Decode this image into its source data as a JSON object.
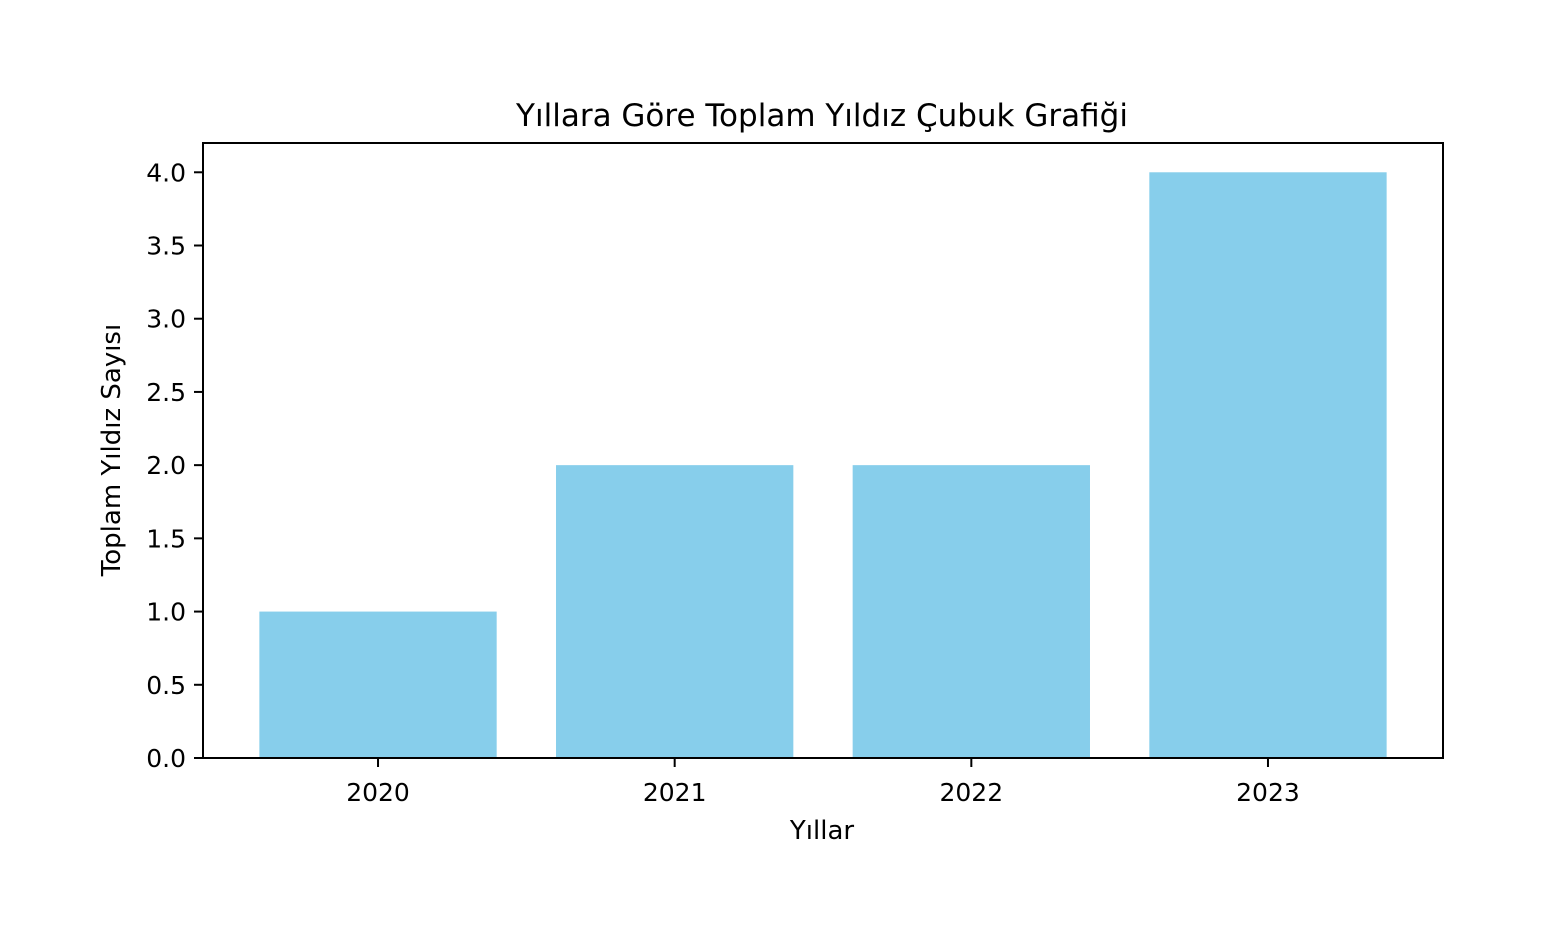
{
  "chart_data": {
    "type": "bar",
    "title": "Yıllara Göre Toplam Yıldız Çubuk Grafiği",
    "xlabel": "Yıllar",
    "ylabel": "Toplam Yıldız Sayısı",
    "categories": [
      "2020",
      "2021",
      "2022",
      "2023"
    ],
    "values": [
      1,
      2,
      2,
      4
    ],
    "ylim": [
      0,
      4.2
    ],
    "yticks": [
      "0.0",
      "0.5",
      "1.0",
      "1.5",
      "2.0",
      "2.5",
      "3.0",
      "3.5",
      "4.0"
    ],
    "bar_color": "#87CEEB",
    "grid": false,
    "legend": "none"
  }
}
